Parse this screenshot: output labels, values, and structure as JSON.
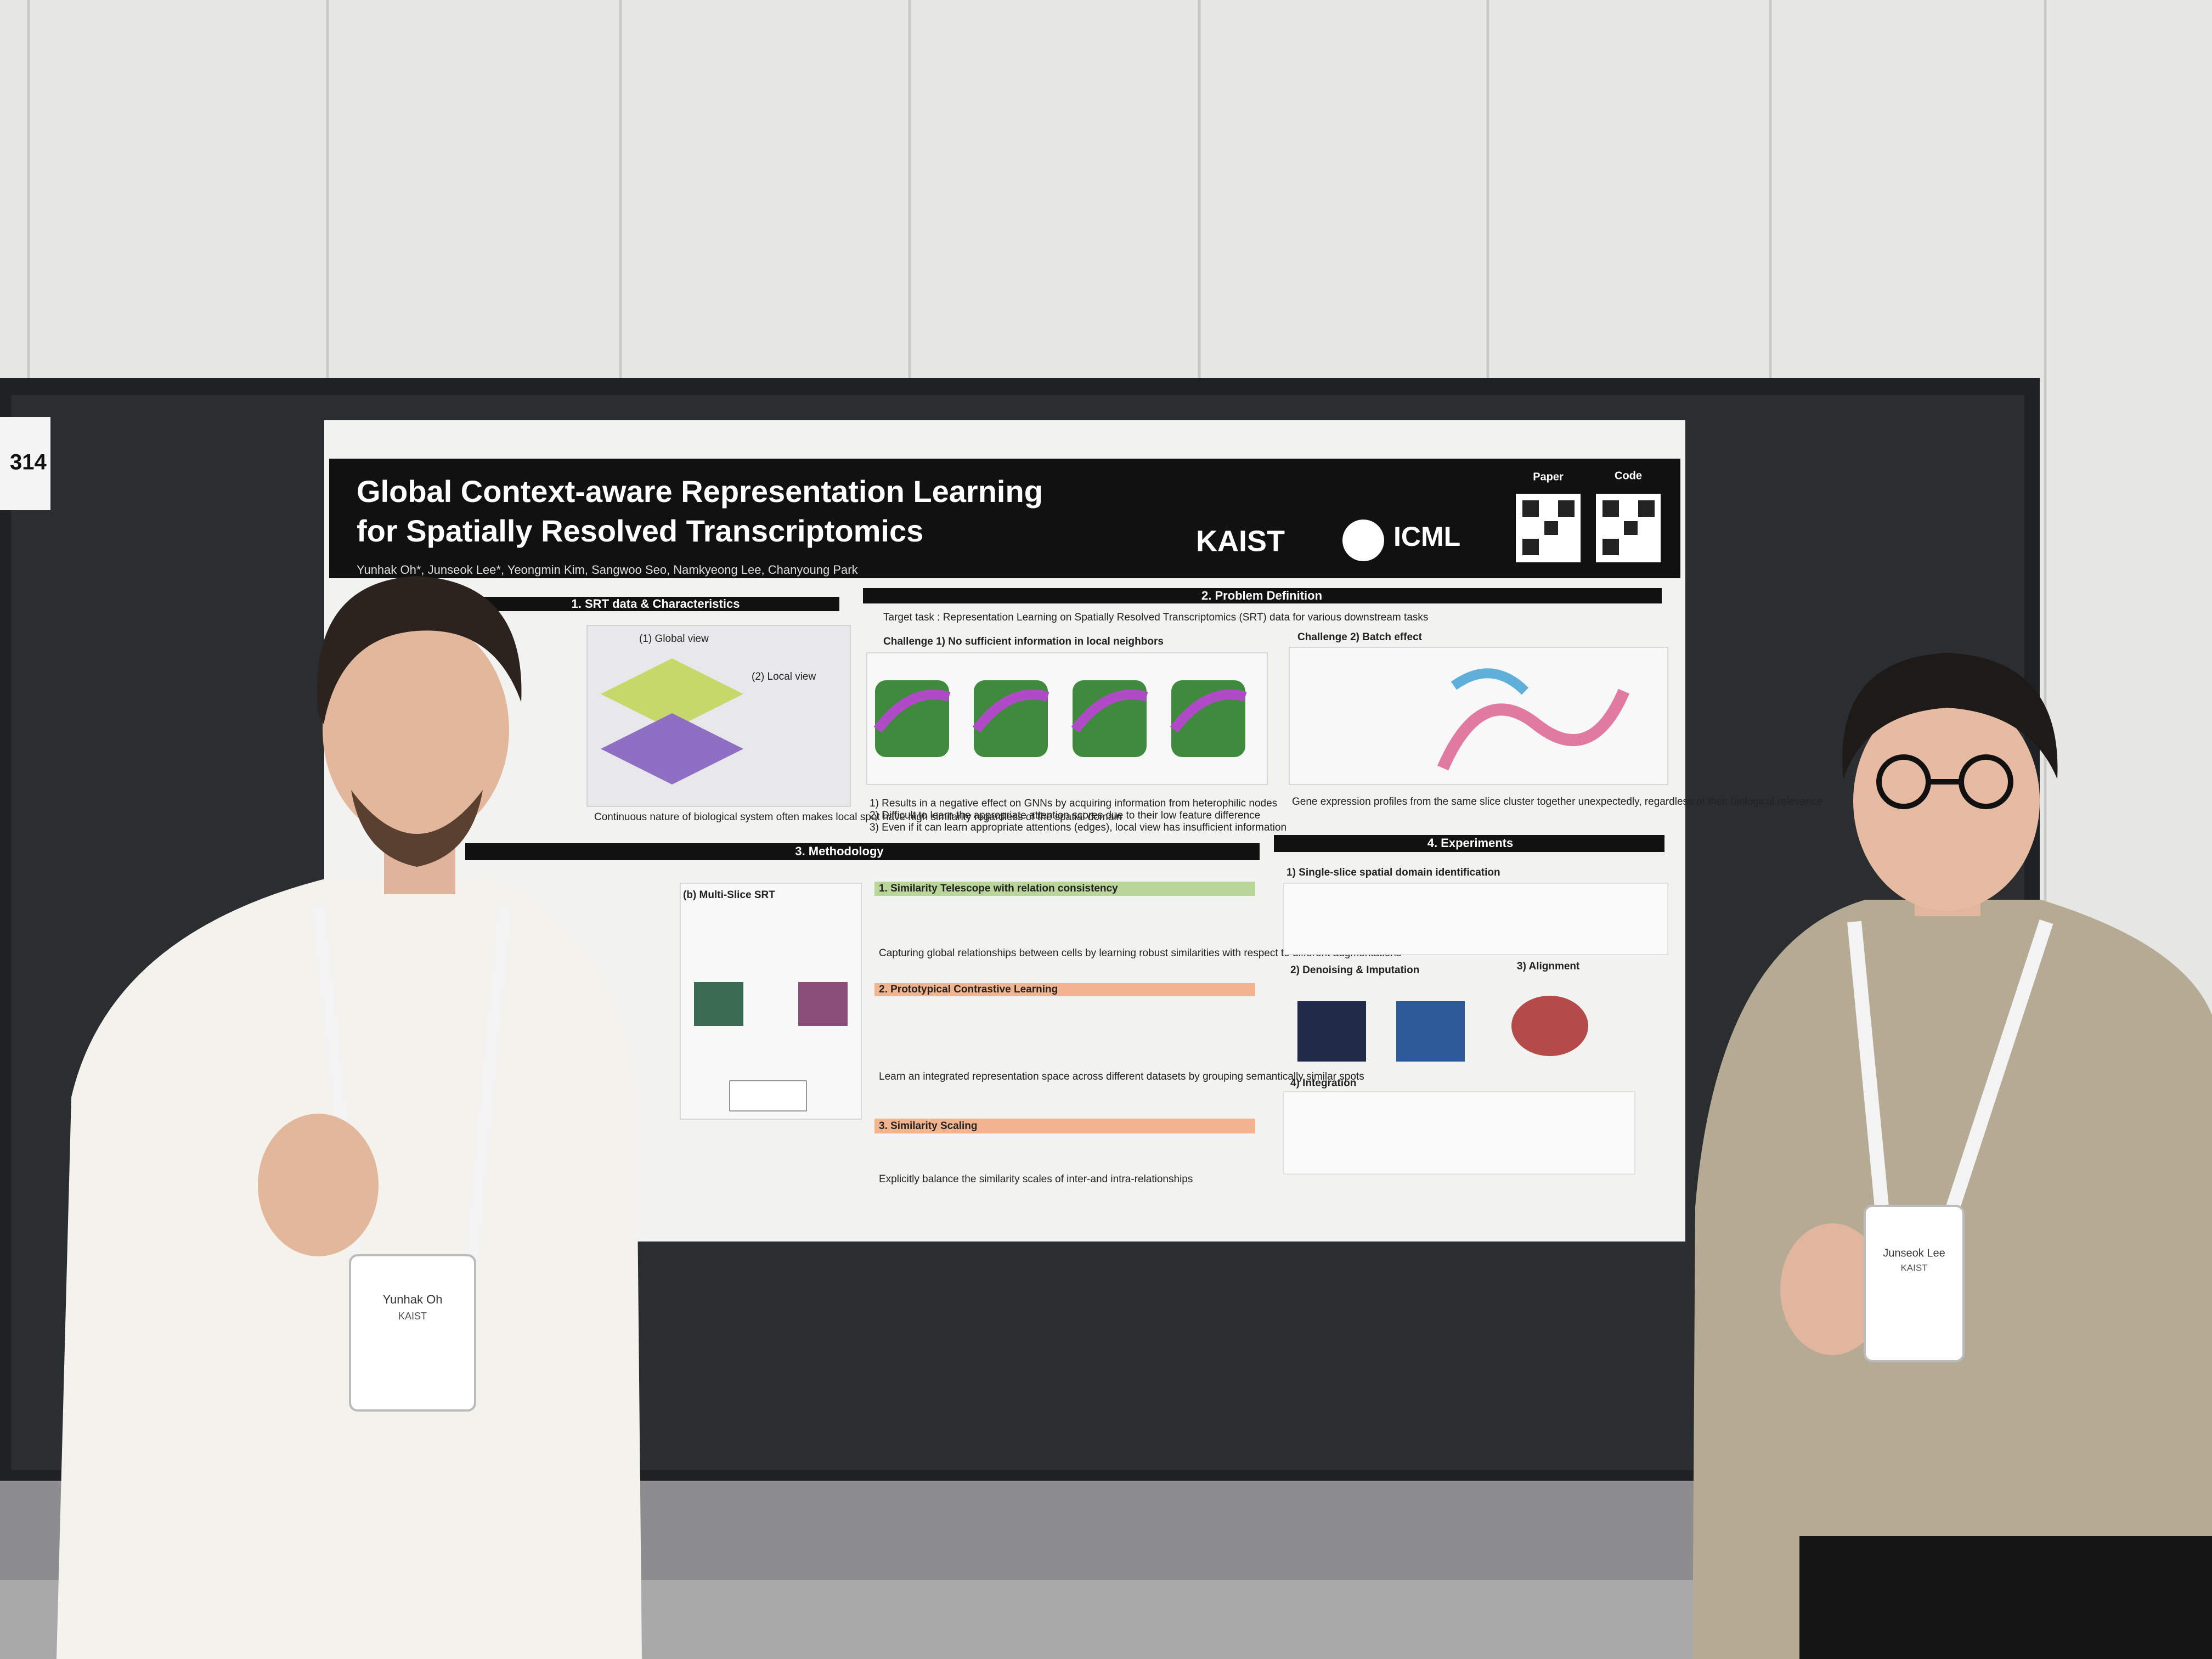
{
  "board_number": "314",
  "poster": {
    "title_lines": [
      "Global Context-aware Representation Learning",
      "for Spatially Resolved Transcriptomics"
    ],
    "authors": "Yunhak Oh*, Junseok Lee*, Yeongmin Kim, Sangwoo Seo, Namkyeong Lee, Chanyoung Park",
    "logos": [
      "KAIST",
      "ICML"
    ],
    "qr_labels": [
      "Paper",
      "Code"
    ],
    "sections": [
      "1. SRT data & Characteristics",
      "2. Problem Definition",
      "3. Methodology",
      "4. Experiments"
    ],
    "s1": {
      "global_view": "(1) Global view",
      "local_view": "(2) Local view",
      "caption": "Continuous nature of biological system often makes local spot have high similarity regardless of the spatial domain"
    },
    "s2": {
      "target": "Target task : Representation Learning on Spatially Resolved Transcriptomics (SRT) data for various downstream tasks",
      "challenge1": "Challenge 1) No sufficient information in local neighbors",
      "challenge2": "Challenge 2) Batch effect",
      "bullets": [
        "1) Results in a negative effect on GNNs by acquiring information from heterophilic nodes",
        "2) Difficult to learn the appropriate attention scores due to their low feature difference",
        "3) Even if it can learn appropriate attentions (edges), local view has insufficient information"
      ],
      "batch_caption": "Gene expression profiles from the same slice cluster together unexpectedly, regardless of their biological relevance"
    },
    "s3": {
      "multi_slice": "(b) Multi-Slice SRT",
      "steps": [
        "1. Similarity Telescope with relation consistency",
        "2. Prototypical Contrastive Learning",
        "3. Similarity Scaling"
      ],
      "notes": [
        "Capturing global relationships between cells by learning robust similarities with respect to different augmentations",
        "Learn an integrated representation space across different datasets by grouping semantically similar spots",
        "Explicitly balance the similarity scales of inter-and intra-relationships"
      ]
    },
    "s4": {
      "subs": [
        "1) Single-slice spatial domain identification",
        "2) Denoising & Imputation",
        "3) Alignment",
        "4) Integration"
      ]
    }
  },
  "badges": [
    {
      "name": "Yunhak Oh",
      "org": "KAIST"
    },
    {
      "name": "Junseok Lee",
      "org": "KAIST"
    }
  ]
}
